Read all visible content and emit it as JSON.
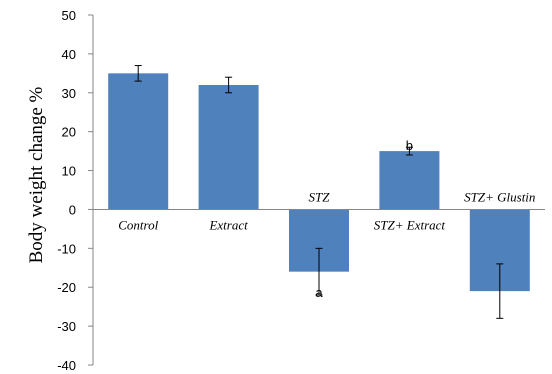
{
  "chart_data": {
    "type": "bar",
    "title": "",
    "xlabel": "",
    "ylabel": "Body weight change %",
    "ylim": [
      -40,
      50
    ],
    "yticks": [
      50,
      40,
      30,
      20,
      10,
      0,
      -10,
      -20,
      -30,
      -40
    ],
    "categories": [
      "Control",
      "Extract",
      "STZ",
      "STZ+ Extract",
      "STZ+ Glustin"
    ],
    "values": [
      35,
      32,
      -16,
      15,
      -21
    ],
    "errors": [
      2,
      2,
      6,
      1,
      7
    ],
    "annotations": [
      "",
      "",
      "a",
      "b",
      ""
    ],
    "bar_color": "#4f81bd",
    "grid": false,
    "legend": "none"
  }
}
